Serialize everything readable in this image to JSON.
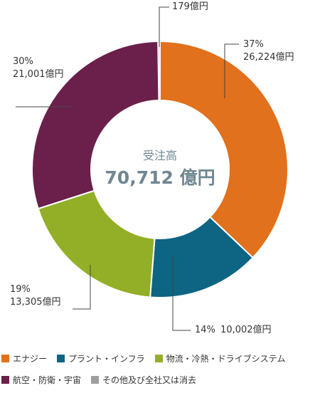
{
  "chart_data": {
    "type": "donut",
    "center": {
      "title": "受注高",
      "total": "70,712 億円"
    },
    "slices": [
      {
        "name": "エナジー",
        "percent": "37%",
        "amount": "26,224億円",
        "value": 26224,
        "color": "#e1711c"
      },
      {
        "name": "プラント・インフラ",
        "percent": "14%",
        "amount": "10,002億円",
        "value": 10002,
        "color": "#0e6483"
      },
      {
        "name": "物流・冷熱・ドライブシステム",
        "percent": "19%",
        "amount": "13,305億円",
        "value": 13305,
        "color": "#93af27"
      },
      {
        "name": "航空・防衛・宇宙",
        "percent": "30%",
        "amount": "21,001億円",
        "value": 21001,
        "color": "#6b1f4b"
      },
      {
        "name": "その他及び全社又は消去",
        "percent": "",
        "amount": "179億円",
        "value": 179,
        "color": "#9e9e9e"
      }
    ],
    "legend_placement": "bottom"
  }
}
